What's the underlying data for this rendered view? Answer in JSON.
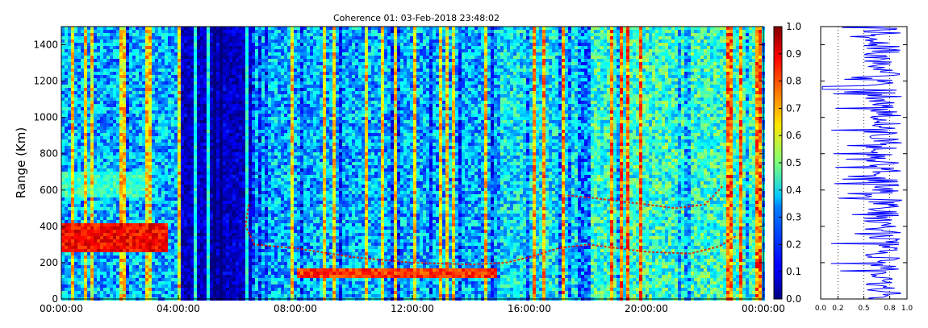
{
  "chart_data": [
    {
      "type": "heatmap",
      "title": "Coherence 01: 03-Feb-2018 23:48:02",
      "xlabel": "",
      "ylabel": "Range (Km)",
      "x_ticks": [
        "00:00:00",
        "04:00:00",
        "08:00:00",
        "12:00:00",
        "16:00:00",
        "20:00:00",
        "00:00:00"
      ],
      "x_range_hours": [
        0,
        24
      ],
      "y_ticks": [
        0,
        200,
        400,
        600,
        800,
        1000,
        1200,
        1400
      ],
      "ylim": [
        0,
        1500
      ],
      "colormap": "jet",
      "clim": [
        0.0,
        1.0
      ],
      "colorbar_ticks": [
        "0.0",
        "0.1",
        "0.2",
        "0.3",
        "0.4",
        "0.5",
        "0.6",
        "0.7",
        "0.8",
        "0.9",
        "1.0"
      ],
      "features": [
        {
          "feature": "high-coherence echo",
          "time_hours": [
            0,
            3.6
          ],
          "range_km": [
            250,
            420
          ],
          "value": 0.95
        },
        {
          "feature": "moderate-coherence echo",
          "time_hours": [
            0,
            3.0
          ],
          "range_km": [
            560,
            700
          ],
          "value": 0.5
        },
        {
          "feature": "high-coherence echo",
          "time_hours": [
            8.0,
            14.8
          ],
          "range_km": [
            110,
            160
          ],
          "value": 0.9
        },
        {
          "feature": "high-coherence trace",
          "time_hours": [
            6.2,
            23.3
          ],
          "range_km": [
            180,
            520
          ],
          "value": 0.85
        },
        {
          "feature": "upper trace",
          "time_hours": [
            17.3,
            22.6
          ],
          "range_km": [
            480,
            700
          ],
          "value": 0.85
        },
        {
          "feature": "low-coherence band",
          "time_hours": [
            4.0,
            6.5
          ],
          "range_km": [
            0,
            1500
          ],
          "value": 0.1
        }
      ]
    },
    {
      "type": "line",
      "xlabel": "",
      "ylabel": "",
      "x_ticks": [
        "0.0",
        "0.2",
        "0.5",
        "0.8",
        "1.0"
      ],
      "xlim": [
        0,
        1
      ],
      "ylim": [
        0,
        1500
      ],
      "grid": "vertical dotted",
      "series": [
        {
          "color": "#0000ff",
          "description_range_km_step": 5
        }
      ]
    }
  ],
  "colors": {
    "axes": "#000000",
    "profile_line": "#0000ff",
    "background": "#ffffff"
  }
}
